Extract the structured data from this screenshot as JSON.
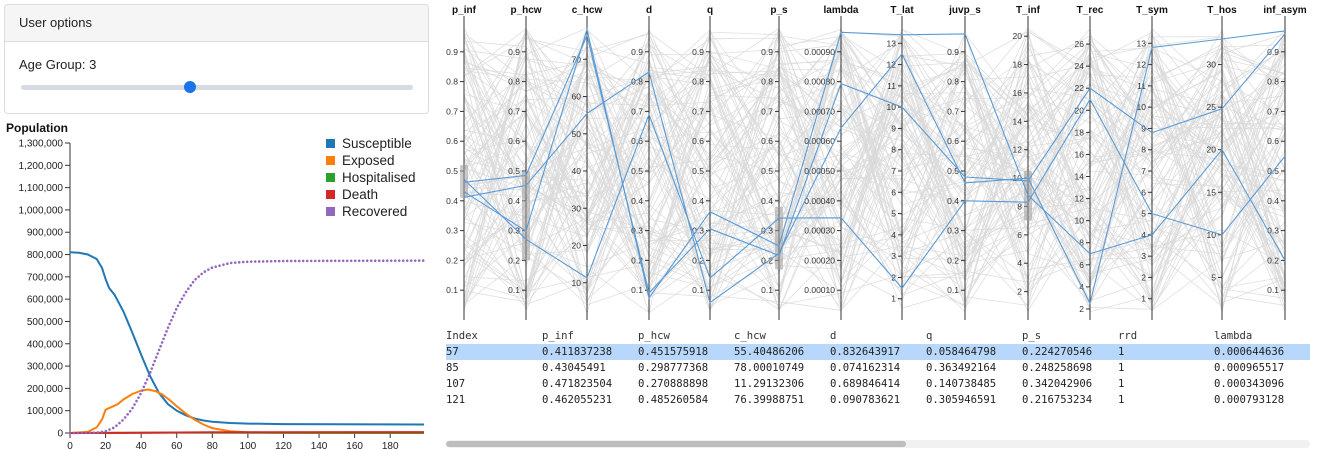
{
  "options": {
    "header": "User options",
    "age_label": "Age Group: 3",
    "age_slider_fraction": 0.43
  },
  "colors": {
    "susceptible": "#1f77b4",
    "exposed": "#ff7f0e",
    "hospitalised": "#2ca02c",
    "death": "#d62728",
    "recovered": "#9467bd",
    "highlight_line": "#5b9bd5",
    "background_line": "#d9d9d9",
    "selected_row": "#b8d8fb"
  },
  "chart_data": {
    "type": "line",
    "title": "Population",
    "xlabel": "",
    "ylabel": "",
    "xlim": [
      0,
      199
    ],
    "ylim": [
      0,
      1300000
    ],
    "x_ticks": [
      "0",
      "20",
      "40",
      "60",
      "80",
      "100",
      "120",
      "140",
      "160",
      "180"
    ],
    "y_ticks": [
      "0",
      "100,000",
      "200,000",
      "300,000",
      "400,000",
      "500,000",
      "600,000",
      "700,000",
      "800,000",
      "900,000",
      "1,000,000",
      "1,100,000",
      "1,200,000",
      "1,300,000"
    ],
    "legend_position": "top-right",
    "series": [
      {
        "name": "Susceptible",
        "color": "#1f77b4",
        "style": "solid",
        "points": [
          [
            0,
            810000
          ],
          [
            5,
            808000
          ],
          [
            10,
            800000
          ],
          [
            15,
            780000
          ],
          [
            18,
            740000
          ],
          [
            20,
            690000
          ],
          [
            22,
            650000
          ],
          [
            25,
            620000
          ],
          [
            30,
            545000
          ],
          [
            35,
            450000
          ],
          [
            40,
            350000
          ],
          [
            45,
            255000
          ],
          [
            50,
            180000
          ],
          [
            55,
            130000
          ],
          [
            60,
            100000
          ],
          [
            65,
            80000
          ],
          [
            70,
            65000
          ],
          [
            75,
            56000
          ],
          [
            80,
            50000
          ],
          [
            90,
            45000
          ],
          [
            100,
            42000
          ],
          [
            120,
            40000
          ],
          [
            150,
            39000
          ],
          [
            199,
            38000
          ]
        ]
      },
      {
        "name": "Exposed",
        "color": "#ff7f0e",
        "style": "solid",
        "points": [
          [
            0,
            0
          ],
          [
            10,
            5000
          ],
          [
            15,
            25000
          ],
          [
            18,
            60000
          ],
          [
            20,
            105000
          ],
          [
            23,
            115000
          ],
          [
            27,
            130000
          ],
          [
            30,
            150000
          ],
          [
            35,
            175000
          ],
          [
            40,
            190000
          ],
          [
            44,
            195000
          ],
          [
            48,
            188000
          ],
          [
            52,
            172000
          ],
          [
            56,
            148000
          ],
          [
            60,
            120000
          ],
          [
            65,
            88000
          ],
          [
            70,
            60000
          ],
          [
            75,
            38000
          ],
          [
            80,
            22000
          ],
          [
            90,
            8000
          ],
          [
            100,
            3000
          ],
          [
            120,
            500
          ],
          [
            199,
            0
          ]
        ]
      },
      {
        "name": "Hospitalised",
        "color": "#2ca02c",
        "style": "solid",
        "points": [
          [
            0,
            0
          ],
          [
            60,
            2000
          ],
          [
            100,
            1000
          ],
          [
            199,
            500
          ]
        ]
      },
      {
        "name": "Death",
        "color": "#d62728",
        "style": "solid",
        "points": [
          [
            0,
            0
          ],
          [
            40,
            1000
          ],
          [
            80,
            3000
          ],
          [
            199,
            4000
          ]
        ]
      },
      {
        "name": "Recovered",
        "color": "#9467bd",
        "style": "dotted",
        "points": [
          [
            0,
            0
          ],
          [
            15,
            2000
          ],
          [
            20,
            8000
          ],
          [
            25,
            25000
          ],
          [
            30,
            60000
          ],
          [
            35,
            110000
          ],
          [
            40,
            180000
          ],
          [
            45,
            270000
          ],
          [
            50,
            370000
          ],
          [
            55,
            470000
          ],
          [
            60,
            560000
          ],
          [
            65,
            630000
          ],
          [
            70,
            685000
          ],
          [
            75,
            720000
          ],
          [
            80,
            742000
          ],
          [
            90,
            762000
          ],
          [
            100,
            768000
          ],
          [
            120,
            771000
          ],
          [
            150,
            772000
          ],
          [
            199,
            773000
          ]
        ]
      }
    ]
  },
  "parallel": {
    "axes": [
      {
        "name": "p_inf",
        "min": 0,
        "max": 1,
        "ticks": [
          "0.1",
          "0.2",
          "0.3",
          "0.4",
          "0.5",
          "0.6",
          "0.7",
          "0.8",
          "0.9"
        ]
      },
      {
        "name": "p_hcw",
        "min": 0,
        "max": 1,
        "ticks": [
          "0.1",
          "0.2",
          "0.3",
          "0.4",
          "0.5",
          "0.6",
          "0.7",
          "0.8",
          "0.9"
        ]
      },
      {
        "name": "c_hcw",
        "min": 0,
        "max": 80,
        "ticks": [
          "10",
          "20",
          "30",
          "40",
          "50",
          "60",
          "70"
        ]
      },
      {
        "name": "d",
        "min": 0,
        "max": 1,
        "ticks": [
          "0.1",
          "0.2",
          "0.3",
          "0.4",
          "0.5",
          "0.6",
          "0.7",
          "0.8",
          "0.9"
        ]
      },
      {
        "name": "q",
        "min": 0,
        "max": 1,
        "ticks": [
          "0.1",
          "0.2",
          "0.3",
          "0.4",
          "0.5",
          "0.6",
          "0.7",
          "0.8",
          "0.9"
        ]
      },
      {
        "name": "p_s",
        "min": 0,
        "max": 1,
        "ticks": [
          "0.1",
          "0.2",
          "0.3",
          "0.4",
          "0.5",
          "0.6",
          "0.7",
          "0.8",
          "0.9"
        ]
      },
      {
        "name": "lambda",
        "min": 0,
        "max": 0.001,
        "ticks": [
          "0.00010",
          "0.00020",
          "0.00030",
          "0.00040",
          "0.00050",
          "0.00060",
          "0.00070",
          "0.00080",
          "0.00090"
        ]
      },
      {
        "name": "T_lat",
        "min": 0,
        "max": 14,
        "ticks": [
          "1",
          "2",
          "3",
          "4",
          "5",
          "6",
          "7",
          "8",
          "9",
          "10",
          "11",
          "12",
          "13"
        ]
      },
      {
        "name": "juvp_s",
        "min": 0,
        "max": 1,
        "ticks": [
          "0.1",
          "0.2",
          "0.3",
          "0.4",
          "0.5",
          "0.6",
          "0.7",
          "0.8",
          "0.9"
        ]
      },
      {
        "name": "T_inf",
        "min": 0,
        "max": 21,
        "ticks": [
          "2",
          "4",
          "6",
          "8",
          "10",
          "12",
          "14",
          "16",
          "18",
          "20"
        ]
      },
      {
        "name": "T_rec",
        "min": 1,
        "max": 28,
        "ticks": [
          "2",
          "4",
          "6",
          "8",
          "10",
          "12",
          "14",
          "16",
          "18",
          "20",
          "22",
          "24",
          "26"
        ]
      },
      {
        "name": "T_sym",
        "min": 0,
        "max": 14,
        "ticks": [
          "1",
          "2",
          "3",
          "4",
          "5",
          "6",
          "7",
          "8",
          "9",
          "10",
          "11",
          "12",
          "13"
        ]
      },
      {
        "name": "T_hos",
        "min": 0,
        "max": 35,
        "ticks": [
          "5",
          "10",
          "15",
          "20",
          "25",
          "30"
        ]
      },
      {
        "name": "inf_asym",
        "min": 0,
        "max": 1,
        "ticks": [
          "0.1",
          "0.2",
          "0.3",
          "0.4",
          "0.5",
          "0.6",
          "0.7",
          "0.8",
          "0.9"
        ]
      }
    ],
    "brushes": [
      {
        "axis": "p_inf",
        "from": 0.41,
        "to": 0.52
      },
      {
        "axis": "p_hcw",
        "from": 0.2,
        "to": 0.5
      },
      {
        "axis": "p_s",
        "from": 0.17,
        "to": 0.38
      },
      {
        "axis": "T_inf",
        "from": 7,
        "to": 10.5
      }
    ],
    "highlighted": [
      [
        0.411837238,
        0.451575918,
        55.40486206,
        0.832643917,
        0.058464798,
        0.224270546,
        0.000644636,
        12.5,
        0.46,
        10,
        2.5,
        12.8,
        33,
        0.97
      ],
      [
        0.43045491,
        0.298777368,
        78.00010749,
        0.074162314,
        0.363492164,
        0.248258698,
        0.000965517,
        13.4,
        0.96,
        8.8,
        7,
        4,
        20,
        0.2
      ],
      [
        0.471823504,
        0.270888898,
        11.29132306,
        0.689846414,
        0.140738485,
        0.342042906,
        0.000343096,
        1.5,
        0.4,
        8.3,
        21,
        5,
        10,
        0.55
      ],
      [
        0.462055231,
        0.485260584,
        76.39988751,
        0.090783621,
        0.305946591,
        0.216753234,
        0.000793128,
        10,
        0.48,
        9.8,
        22,
        8.8,
        24.8,
        0.96
      ]
    ]
  },
  "table": {
    "columns": [
      "Index",
      "p_inf",
      "p_hcw",
      "c_hcw",
      "d",
      "q",
      "p_s",
      "rrd",
      "lambda"
    ],
    "rows": [
      [
        "57",
        "0.411837238",
        "0.451575918",
        "55.40486206",
        "0.832643917",
        "0.058464798",
        "0.224270546",
        "1",
        "0.000644636"
      ],
      [
        "85",
        "0.43045491",
        "0.298777368",
        "78.00010749",
        "0.074162314",
        "0.363492164",
        "0.248258698",
        "1",
        "0.000965517"
      ],
      [
        "107",
        "0.471823504",
        "0.270888898",
        "11.29132306",
        "0.689846414",
        "0.140738485",
        "0.342042906",
        "1",
        "0.000343096"
      ],
      [
        "121",
        "0.462055231",
        "0.485260584",
        "76.39988751",
        "0.090783621",
        "0.305946591",
        "0.216753234",
        "1",
        "0.000793128"
      ]
    ],
    "selected_row": 0
  }
}
